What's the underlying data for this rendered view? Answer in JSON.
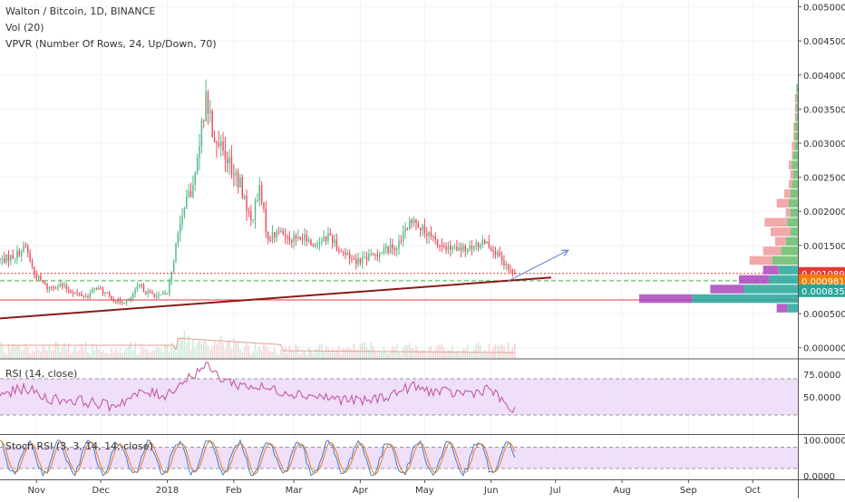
{
  "chart_data": {
    "type": "candlestick",
    "title": "Walton / Bitcoin, 1D, BINANCE",
    "indicator_labels": {
      "volume": "Vol (20)",
      "vpvr": "VPVR (Number Of Rows, 24, Up/Down, 70)",
      "rsi": "RSI (14, close)",
      "stoch_rsi": "Stoch RSI (3, 3, 14, 14, close)"
    },
    "x_tick_labels": [
      "Nov",
      "Dec",
      "2018",
      "Feb",
      "Mar",
      "Apr",
      "May",
      "Jun",
      "Jul",
      "Aug",
      "Sep",
      "Oct"
    ],
    "x_tick_days": [
      35,
      65,
      96,
      127,
      155,
      186,
      216,
      247,
      277,
      308,
      339,
      369
    ],
    "x_range_days": [
      18,
      390
    ],
    "price_axis": {
      "ylim": [
        -0.00015,
        0.0051
      ],
      "ticks": [
        0.0,
        0.0005,
        0.001,
        0.0015,
        0.002,
        0.0025,
        0.003,
        0.0035,
        0.004,
        0.0045,
        0.005
      ],
      "tick_labels": [
        "0.0000000",
        "0.0005000",
        "0.0010000",
        "0.0015000",
        "0.0020000",
        "0.0025000",
        "0.0030000",
        "0.0035000",
        "0.0040000",
        "0.0045000",
        "0.0050000"
      ]
    },
    "price_labels": [
      {
        "value": 0.0010891,
        "text": "0.0010891",
        "color": "#e53935"
      },
      {
        "value": 0.000981,
        "text": "0.0009810",
        "color": "#f57c00"
      },
      {
        "value": 0.0008358,
        "text": "0.0008358",
        "color": "#26a69a"
      }
    ],
    "horizontal_lines": [
      {
        "value": 0.0010891,
        "color": "#e53935",
        "style": "dotted"
      },
      {
        "value": 0.000981,
        "color": "#4caf50",
        "style": "dashed"
      },
      {
        "value": 0.0007,
        "color": "#e53935",
        "style": "solid"
      }
    ],
    "trend_line": {
      "from": [
        18,
        0.00043
      ],
      "to": [
        275,
        0.00103
      ],
      "color": "#8b1a1a"
    },
    "forecast_arrow": {
      "from": [
        255,
        0.00098
      ],
      "to": [
        283,
        0.00143
      ],
      "color": "#6a8ec8"
    },
    "anchors": [
      [
        18,
        0.00128
      ],
      [
        25,
        0.00135
      ],
      [
        30,
        0.00148
      ],
      [
        34,
        0.00108
      ],
      [
        40,
        0.00088
      ],
      [
        46,
        0.00092
      ],
      [
        52,
        0.00082
      ],
      [
        58,
        0.00075
      ],
      [
        63,
        0.00088
      ],
      [
        67,
        0.0008
      ],
      [
        72,
        0.00068
      ],
      [
        78,
        0.00068
      ],
      [
        83,
        0.00092
      ],
      [
        86,
        0.00082
      ],
      [
        92,
        0.00075
      ],
      [
        96,
        0.0008
      ],
      [
        101,
        0.00165
      ],
      [
        104,
        0.00205
      ],
      [
        108,
        0.00235
      ],
      [
        111,
        0.00295
      ],
      [
        114,
        0.0037
      ],
      [
        117,
        0.0032
      ],
      [
        121,
        0.0029
      ],
      [
        125,
        0.0027
      ],
      [
        130,
        0.0024
      ],
      [
        135,
        0.00185
      ],
      [
        139,
        0.0023
      ],
      [
        143,
        0.0016
      ],
      [
        148,
        0.0017
      ],
      [
        152,
        0.00163
      ],
      [
        156,
        0.0016
      ],
      [
        160,
        0.0016
      ],
      [
        164,
        0.0015
      ],
      [
        168,
        0.0016
      ],
      [
        172,
        0.00165
      ],
      [
        176,
        0.00145
      ],
      [
        180,
        0.00135
      ],
      [
        184,
        0.00128
      ],
      [
        188,
        0.00132
      ],
      [
        192,
        0.00135
      ],
      [
        196,
        0.00142
      ],
      [
        200,
        0.00146
      ],
      [
        204,
        0.00152
      ],
      [
        208,
        0.00178
      ],
      [
        212,
        0.00188
      ],
      [
        216,
        0.00168
      ],
      [
        220,
        0.00158
      ],
      [
        226,
        0.00145
      ],
      [
        232,
        0.00143
      ],
      [
        238,
        0.00145
      ],
      [
        244,
        0.00158
      ],
      [
        248,
        0.00145
      ],
      [
        252,
        0.00125
      ],
      [
        256,
        0.00112
      ],
      [
        258,
        0.00108
      ]
    ],
    "vpvr": [
      {
        "price": 0.00058,
        "up": 7e-05,
        "down": 7e-05
      },
      {
        "price": 0.00072,
        "up": 0.0007,
        "down": 0.00035
      },
      {
        "price": 0.00086,
        "up": 0.00036,
        "down": 0.00022
      },
      {
        "price": 0.001,
        "up": 0.00019,
        "down": 0.0002
      },
      {
        "price": 0.00114,
        "up": 0.00013,
        "down": 0.0001
      },
      {
        "price": 0.00128,
        "up": 0.00017,
        "down": 0.00015
      },
      {
        "price": 0.00142,
        "up": 0.00011,
        "down": 0.00012
      },
      {
        "price": 0.00156,
        "up": 8e-05,
        "down": 7e-05
      },
      {
        "price": 0.0017,
        "up": 5e-05,
        "down": 0.00013
      },
      {
        "price": 0.00184,
        "up": 7e-05,
        "down": 0.00015
      },
      {
        "price": 0.00198,
        "up": 5e-05,
        "down": 3e-05
      },
      {
        "price": 0.00212,
        "up": 6e-05,
        "down": 8e-05
      },
      {
        "price": 0.00226,
        "up": 5e-05,
        "down": 4e-05
      },
      {
        "price": 0.0024,
        "up": 4e-05,
        "down": 2e-05
      },
      {
        "price": 0.00254,
        "up": 3e-05,
        "down": 2e-05
      },
      {
        "price": 0.00268,
        "up": 4e-05,
        "down": 2e-05
      },
      {
        "price": 0.00282,
        "up": 3e-05,
        "down": 1e-05
      },
      {
        "price": 0.00296,
        "up": 2e-05,
        "down": 2e-05
      },
      {
        "price": 0.0031,
        "up": 2e-05,
        "down": 1e-05
      },
      {
        "price": 0.00324,
        "up": 2e-05,
        "down": 1e-05
      },
      {
        "price": 0.00338,
        "up": 1e-05,
        "down": 1e-05
      },
      {
        "price": 0.00352,
        "up": 1e-05,
        "down": 1e-05
      },
      {
        "price": 0.00366,
        "up": 1e-05,
        "down": 1e-05
      },
      {
        "price": 0.0038,
        "up": 1e-05,
        "down": 0
      }
    ],
    "rsi_axis": {
      "ylim": [
        10,
        90
      ],
      "ticks": [
        50,
        75
      ],
      "tick_labels": [
        "50.0000",
        "75.0000"
      ],
      "band": [
        30,
        70
      ]
    },
    "rsi_anchors": [
      [
        18,
        52
      ],
      [
        30,
        60
      ],
      [
        40,
        48
      ],
      [
        55,
        46
      ],
      [
        70,
        40
      ],
      [
        85,
        55
      ],
      [
        95,
        52
      ],
      [
        104,
        68
      ],
      [
        110,
        78
      ],
      [
        114,
        86
      ],
      [
        120,
        72
      ],
      [
        128,
        64
      ],
      [
        140,
        60
      ],
      [
        150,
        56
      ],
      [
        162,
        52
      ],
      [
        175,
        48
      ],
      [
        188,
        45
      ],
      [
        200,
        52
      ],
      [
        210,
        62
      ],
      [
        215,
        58
      ],
      [
        228,
        54
      ],
      [
        240,
        55
      ],
      [
        246,
        60
      ],
      [
        252,
        45
      ],
      [
        258,
        33
      ]
    ],
    "stoch_axis": {
      "ylim": [
        -8,
        112
      ],
      "ticks": [
        0,
        100
      ],
      "tick_labels": [
        "0.0000",
        "100.0000"
      ],
      "band": [
        20,
        80
      ]
    },
    "colors": {
      "up": "#53b987",
      "down": "#eb4d5c",
      "vpvr_up": "#66bb6a",
      "vpvr_down": "#ef9a9a",
      "vpvr_value_up": "#26a69a",
      "vpvr_value_down": "#ab47bc",
      "rsi_line": "#c04fa0",
      "stoch_k": "#3f7fd0",
      "stoch_d": "#e67e22",
      "band": "#e9d4f7",
      "ma": "#e9a08a"
    }
  }
}
